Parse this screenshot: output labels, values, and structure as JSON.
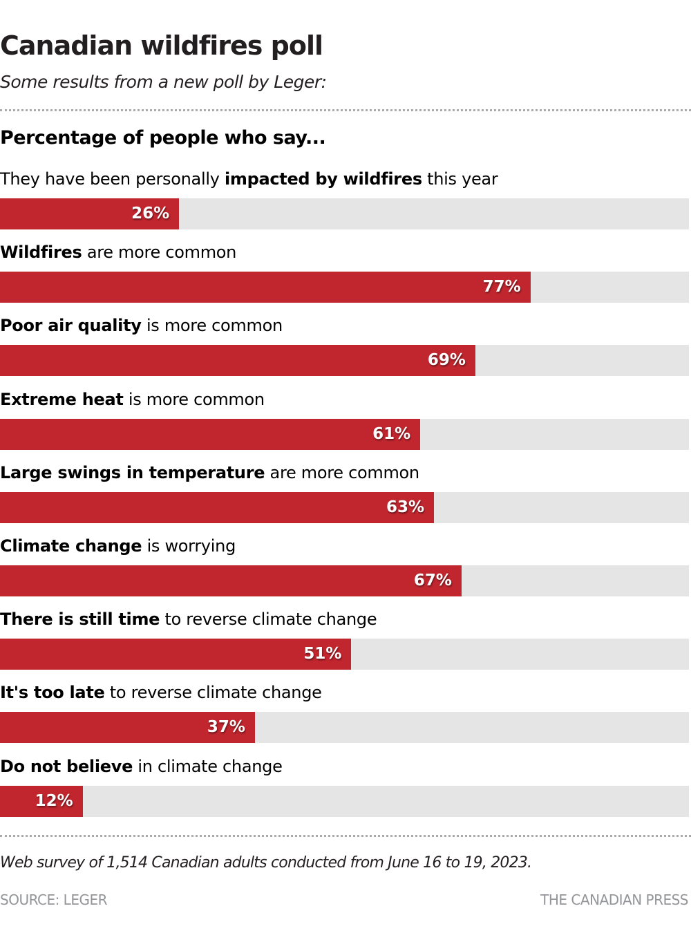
{
  "header": {
    "title": "Canadian wildfires poll",
    "subtitle": "Some results from a new poll by Leger:",
    "section": "Percentage of people who say..."
  },
  "chart_data": {
    "type": "bar",
    "orientation": "horizontal",
    "title": "Canadian wildfires poll",
    "subtitle": "Some results from a new poll by Leger:",
    "xlabel": "",
    "ylabel": "Percentage of people who say...",
    "xlim": [
      0,
      100
    ],
    "unit": "%",
    "colors": {
      "bar": "#c1262f",
      "track": "#e5e5e5"
    },
    "categories": [
      "They have been personally impacted by wildfires this year",
      "Wildfires are more common",
      "Poor air quality is more common",
      "Extreme heat is more common",
      "Large swings in temperature are more common",
      "Climate change is worrying",
      "There is still time to reverse climate change",
      "It's too late to reverse climate change",
      "Do not believe in climate change"
    ],
    "values": [
      26,
      77,
      69,
      61,
      63,
      67,
      51,
      37,
      12
    ],
    "rows": [
      {
        "pre": "They have been personally ",
        "bold": "impacted by wildfires",
        "post": " this year",
        "value": 26,
        "value_label": "26%"
      },
      {
        "pre": "",
        "bold": "Wildfires",
        "post": " are more common",
        "value": 77,
        "value_label": "77%"
      },
      {
        "pre": "",
        "bold": "Poor air quality",
        "post": " is more common",
        "value": 69,
        "value_label": "69%"
      },
      {
        "pre": "",
        "bold": "Extreme heat",
        "post": " is more common",
        "value": 61,
        "value_label": "61%"
      },
      {
        "pre": "",
        "bold": "Large swings in temperature",
        "post": " are more common",
        "value": 63,
        "value_label": "63%"
      },
      {
        "pre": "",
        "bold": "Climate change",
        "post": " is worrying",
        "value": 67,
        "value_label": "67%"
      },
      {
        "pre": "",
        "bold": "There is still time",
        "post": " to reverse climate change",
        "value": 51,
        "value_label": "51%"
      },
      {
        "pre": "",
        "bold": "It's too late",
        "post": " to reverse climate change",
        "value": 37,
        "value_label": "37%"
      },
      {
        "pre": "",
        "bold": "Do not believe",
        "post": " in climate change",
        "value": 12,
        "value_label": "12%"
      }
    ]
  },
  "footer": {
    "note": "Web survey of 1,514 Canadian adults conducted from June 16 to 19, 2023.",
    "source": "SOURCE: LEGER",
    "credit": "THE CANADIAN PRESS"
  }
}
